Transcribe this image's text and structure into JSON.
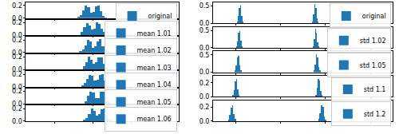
{
  "chart_data": [
    {
      "type": "histogram",
      "legend": "upper right",
      "tick_labels": "y",
      "bins": [
        -0.8,
        -0.67,
        -0.54,
        -0.41,
        -0.28,
        -0.15,
        -0.02,
        0.11,
        0.24,
        0.37,
        0.5,
        0.63,
        0.76
      ],
      "series": [
        {
          "name": "original",
          "color": "#1f77b4",
          "values": [
            0.02,
            0.05,
            0.12,
            0.2,
            0.17,
            0.08,
            0.1,
            0.19,
            0.2,
            0.11,
            0.04,
            0.01
          ]
        }
      ],
      "xlim": [
        -3.5,
        4.5
      ],
      "xticks": [
        -2,
        0,
        2,
        4
      ],
      "ylim": [
        0,
        0.25
      ],
      "yticks": [
        {
          "value": 0,
          "label": "0.0"
        },
        {
          "value": 0.2,
          "label": "0.2"
        }
      ]
    },
    {
      "type": "histogram",
      "legend": "upper right",
      "tick_labels": "y",
      "bins": [
        -0.75,
        -0.62,
        -0.49,
        -0.36,
        -0.23,
        -0.1,
        0.03,
        0.16,
        0.29,
        0.42,
        0.55,
        0.68,
        0.81
      ],
      "series": [
        {
          "name": "mean 1.01",
          "color": "#1f77b4",
          "values": [
            0.01,
            0.06,
            0.13,
            0.19,
            0.16,
            0.09,
            0.11,
            0.2,
            0.18,
            0.1,
            0.05,
            0.01
          ]
        }
      ],
      "xlim": [
        -3.5,
        4.5
      ],
      "xticks": [
        -2,
        0,
        2,
        4
      ],
      "ylim": [
        0,
        0.25
      ],
      "yticks": [
        {
          "value": 0,
          "label": "0.0"
        },
        {
          "value": 0.2,
          "label": "0.2"
        }
      ]
    },
    {
      "type": "histogram",
      "legend": "upper right",
      "tick_labels": "y",
      "bins": [
        -0.7,
        -0.57,
        -0.44,
        -0.31,
        -0.18,
        -0.05,
        0.08,
        0.21,
        0.34,
        0.47,
        0.6,
        0.73,
        0.86
      ],
      "series": [
        {
          "name": "mean 1.02",
          "color": "#1f77b4",
          "values": [
            0.02,
            0.05,
            0.11,
            0.2,
            0.18,
            0.08,
            0.1,
            0.18,
            0.21,
            0.1,
            0.04,
            0.02
          ]
        }
      ],
      "xlim": [
        -3.5,
        4.5
      ],
      "xticks": [
        -2,
        0,
        2,
        4
      ],
      "ylim": [
        0,
        0.25
      ],
      "yticks": [
        {
          "value": 0,
          "label": "0.0"
        },
        {
          "value": 0.2,
          "label": "0.2"
        }
      ]
    },
    {
      "type": "histogram",
      "legend": "upper right",
      "tick_labels": "y",
      "bins": [
        -0.65,
        -0.52,
        -0.39,
        -0.26,
        -0.13,
        0,
        0.13,
        0.26,
        0.39,
        0.52,
        0.65,
        0.78,
        0.91
      ],
      "series": [
        {
          "name": "mean 1.03",
          "color": "#1f77b4",
          "values": [
            0.01,
            0.05,
            0.12,
            0.21,
            0.16,
            0.09,
            0.12,
            0.2,
            0.19,
            0.09,
            0.04,
            0.01
          ]
        }
      ],
      "xlim": [
        -3.5,
        4.5
      ],
      "xticks": [
        -2,
        0,
        2,
        4
      ],
      "ylim": [
        0,
        0.25
      ],
      "yticks": [
        {
          "value": 0,
          "label": "0.0"
        },
        {
          "value": 0.2,
          "label": "0.2"
        }
      ]
    },
    {
      "type": "histogram",
      "legend": "upper right",
      "tick_labels": "y",
      "bins": [
        -0.6,
        -0.47,
        -0.34,
        -0.21,
        -0.08,
        0.05,
        0.18,
        0.31,
        0.44,
        0.57,
        0.7,
        0.83,
        0.96
      ],
      "series": [
        {
          "name": "mean 1.04",
          "color": "#1f77b4",
          "values": [
            0.02,
            0.06,
            0.12,
            0.19,
            0.17,
            0.1,
            0.11,
            0.19,
            0.2,
            0.1,
            0.03,
            0.01
          ]
        }
      ],
      "xlim": [
        -3.5,
        4.5
      ],
      "xticks": [
        -2,
        0,
        2,
        4
      ],
      "ylim": [
        0,
        0.25
      ],
      "yticks": [
        {
          "value": 0,
          "label": "0.0"
        },
        {
          "value": 0.2,
          "label": "0.2"
        }
      ]
    },
    {
      "type": "histogram",
      "legend": "upper right",
      "tick_labels": "y",
      "bins": [
        -0.55,
        -0.42,
        -0.29,
        -0.16,
        -0.03,
        0.1,
        0.23,
        0.36,
        0.49,
        0.62,
        0.75,
        0.88,
        1.01
      ],
      "series": [
        {
          "name": "mean 1.05",
          "color": "#1f77b4",
          "values": [
            0.01,
            0.05,
            0.13,
            0.2,
            0.18,
            0.09,
            0.1,
            0.2,
            0.19,
            0.11,
            0.04,
            0.01
          ]
        }
      ],
      "xlim": [
        -3.5,
        4.5
      ],
      "xticks": [
        -2,
        0,
        2,
        4
      ],
      "ylim": [
        0,
        0.25
      ],
      "yticks": [
        {
          "value": 0,
          "label": "0.0"
        },
        {
          "value": 0.2,
          "label": "0.2"
        }
      ]
    },
    {
      "type": "histogram",
      "legend": "upper right",
      "tick_labels": "y",
      "bins": [
        -0.5,
        -0.37,
        -0.24,
        -0.11,
        0.02,
        0.15,
        0.28,
        0.41,
        0.54,
        0.67,
        0.8,
        0.93,
        1.06
      ],
      "series": [
        {
          "name": "mean 1.06",
          "color": "#1f77b4",
          "values": [
            0.02,
            0.05,
            0.12,
            0.2,
            0.17,
            0.09,
            0.11,
            0.19,
            0.2,
            0.1,
            0.04,
            0.01
          ]
        }
      ],
      "xlim": [
        -3.5,
        4.5
      ],
      "xticks": [
        -2,
        0,
        2,
        4
      ],
      "ylim": [
        0,
        0.25
      ],
      "yticks": [
        {
          "value": 0,
          "label": "0.0"
        },
        {
          "value": 0.2,
          "label": "0.2"
        }
      ]
    },
    {
      "type": "histogram",
      "legend": "upper right",
      "tick_labels": "y",
      "bins": [
        -1.95,
        -1.9,
        -1.85,
        -1.8,
        -1.75,
        -1.7,
        -1.65,
        1.4,
        1.45,
        1.5,
        1.55,
        1.6,
        1.65,
        1.7
      ],
      "series": [
        {
          "name": "original",
          "color": "#1f77b4",
          "values": [
            0.05,
            0.2,
            0.45,
            0.5,
            0.2,
            0.05,
            0,
            0.05,
            0.25,
            0.55,
            0.45,
            0.15,
            0.05
          ]
        }
      ],
      "xlim": [
        -3,
        5
      ],
      "xticks": [
        -2,
        0,
        2,
        4
      ],
      "ylim": [
        0,
        0.6
      ],
      "yticks": [
        {
          "value": 0,
          "label": "0.0"
        },
        {
          "value": 0.5,
          "label": "0.5"
        }
      ]
    },
    {
      "type": "histogram",
      "legend": "upper right",
      "tick_labels": "y",
      "bins": [
        -1.99,
        -1.94,
        -1.89,
        -1.84,
        -1.79,
        -1.73,
        -1.68,
        1.43,
        1.48,
        1.53,
        1.58,
        1.63,
        1.68,
        1.73
      ],
      "series": [
        {
          "name": "std 1.02",
          "color": "#1f77b4",
          "values": [
            0.05,
            0.19,
            0.44,
            0.49,
            0.2,
            0.05,
            0,
            0.05,
            0.24,
            0.54,
            0.44,
            0.15,
            0.05
          ]
        }
      ],
      "xlim": [
        -3,
        5
      ],
      "xticks": [
        -2,
        0,
        2,
        4
      ],
      "ylim": [
        0,
        0.6
      ],
      "yticks": [
        {
          "value": 0,
          "label": "0.0"
        },
        {
          "value": 0.5,
          "label": "0.5"
        }
      ]
    },
    {
      "type": "histogram",
      "legend": "upper right",
      "tick_labels": "y",
      "bins": [
        -2.05,
        -2,
        -1.94,
        -1.89,
        -1.84,
        -1.79,
        -1.73,
        1.47,
        1.52,
        1.58,
        1.63,
        1.68,
        1.73,
        1.79
      ],
      "series": [
        {
          "name": "std 1.05",
          "color": "#1f77b4",
          "values": [
            0.05,
            0.19,
            0.43,
            0.47,
            0.19,
            0.05,
            0,
            0.05,
            0.23,
            0.52,
            0.43,
            0.14,
            0.05
          ]
        }
      ],
      "xlim": [
        -3,
        5
      ],
      "xticks": [
        -2,
        0,
        2,
        4
      ],
      "ylim": [
        0,
        0.6
      ],
      "yticks": [
        {
          "value": 0,
          "label": "0.0"
        },
        {
          "value": 0.5,
          "label": "0.5"
        }
      ]
    },
    {
      "type": "histogram",
      "legend": "upper right",
      "tick_labels": "y",
      "bins": [
        -2.15,
        -2.09,
        -2.04,
        -1.98,
        -1.93,
        -1.87,
        -1.82,
        1.54,
        1.6,
        1.65,
        1.71,
        1.76,
        1.82,
        1.87
      ],
      "series": [
        {
          "name": "std 1.1",
          "color": "#1f77b4",
          "values": [
            0.03,
            0.1,
            0.22,
            0.26,
            0.11,
            0.03,
            0,
            0.03,
            0.13,
            0.26,
            0.23,
            0.08,
            0.03
          ]
        }
      ],
      "xlim": [
        -3,
        5
      ],
      "xticks": [
        -2,
        0,
        2,
        4
      ],
      "ylim": [
        0,
        0.3
      ],
      "yticks": [
        {
          "value": 0,
          "label": "0.0"
        },
        {
          "value": 0.2,
          "label": "0.2"
        }
      ]
    },
    {
      "type": "histogram",
      "legend": "upper right",
      "tick_labels": "y",
      "bins": [
        -2.34,
        -2.28,
        -2.22,
        -2.16,
        -2.1,
        -2.04,
        -1.98,
        1.68,
        1.74,
        1.8,
        1.86,
        1.92,
        1.98,
        2.04
      ],
      "series": [
        {
          "name": "std 1.2",
          "color": "#1f77b4",
          "values": [
            0.02,
            0.09,
            0.2,
            0.23,
            0.1,
            0.03,
            0,
            0.03,
            0.12,
            0.23,
            0.21,
            0.07,
            0.02
          ]
        }
      ],
      "xlim": [
        -3,
        5
      ],
      "xticks": [
        -2,
        0,
        2,
        4
      ],
      "ylim": [
        0,
        0.3
      ],
      "yticks": [
        {
          "value": 0,
          "label": "0.0"
        },
        {
          "value": 0.2,
          "label": "0.2"
        }
      ]
    }
  ]
}
